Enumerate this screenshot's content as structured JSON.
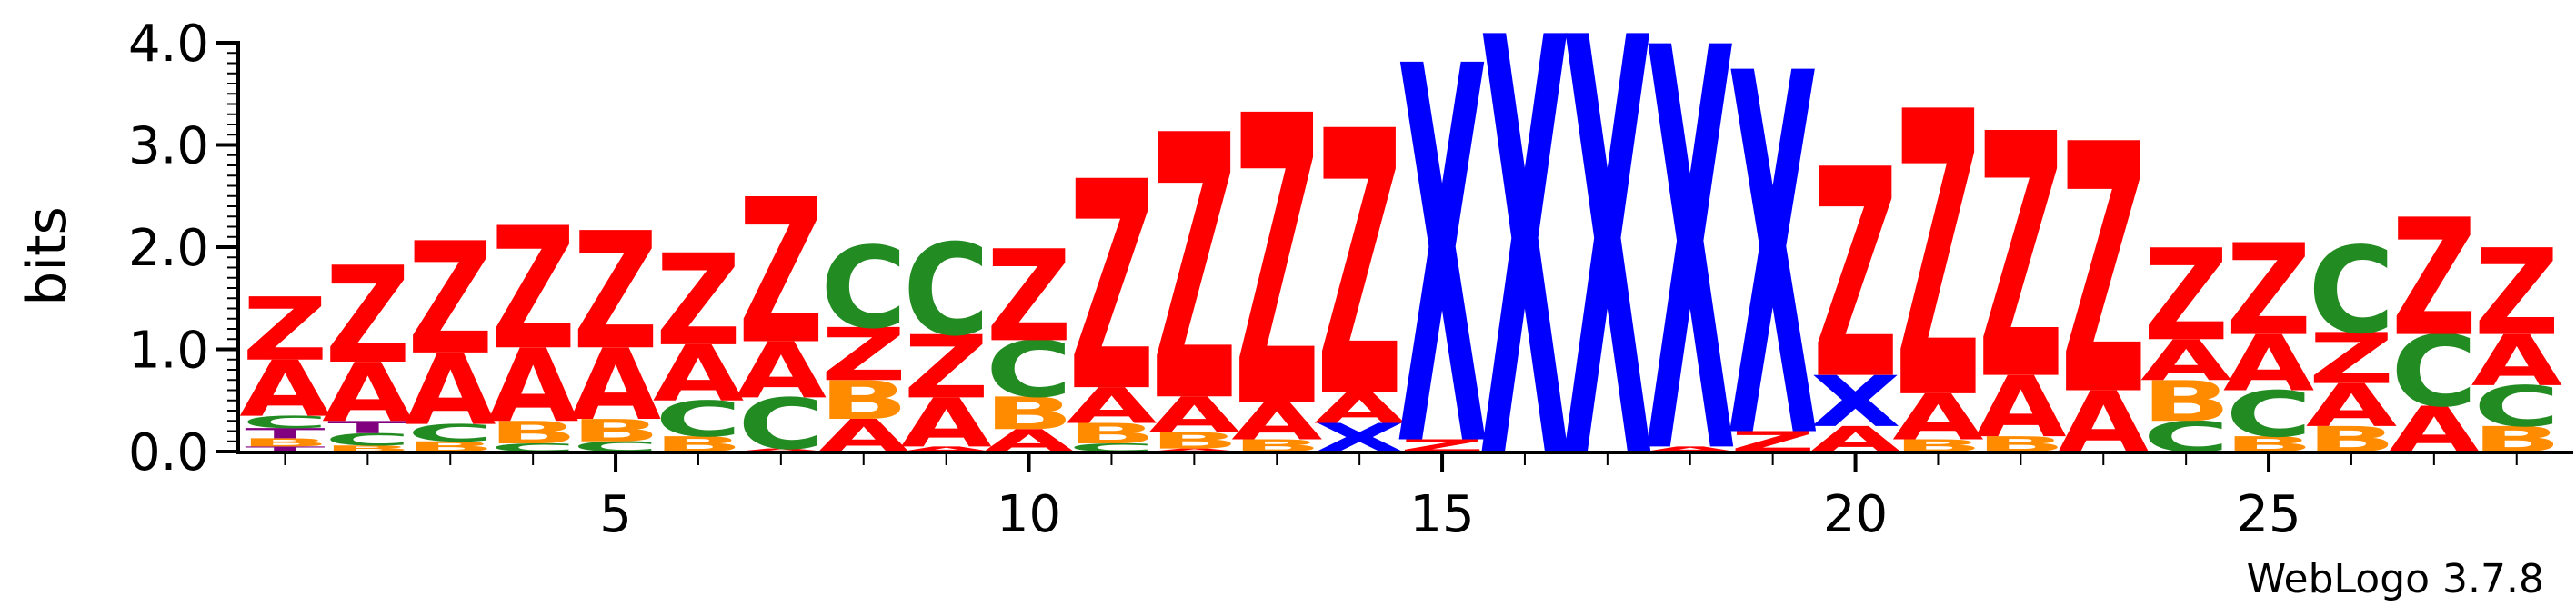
{
  "chart_data": {
    "type": "sequence-logo",
    "ylabel": "bits",
    "ylim": [
      0,
      4.0
    ],
    "yticks": [
      "0.0",
      "1.0",
      "2.0",
      "3.0",
      "4.0"
    ],
    "xticks": [
      5,
      10,
      15,
      20,
      25
    ],
    "xlim": [
      0.5,
      28.5
    ],
    "footer": "WebLogo 3.7.8",
    "colors": {
      "Z": "#ff0000",
      "A": "#ff0000",
      "X": "#0000ff",
      "C": "#228b22",
      "B": "#ff8c00",
      "T": "#800080"
    },
    "positions": [
      {
        "pos": 1,
        "stack": [
          [
            "T",
            0.05
          ],
          [
            "B",
            0.08
          ],
          [
            "T",
            0.1
          ],
          [
            "C",
            0.12
          ],
          [
            "A",
            0.55
          ],
          [
            "Z",
            0.62
          ]
        ]
      },
      {
        "pos": 2,
        "stack": [
          [
            "B",
            0.06
          ],
          [
            "C",
            0.12
          ],
          [
            "T",
            0.12
          ],
          [
            "A",
            0.58
          ],
          [
            "Z",
            0.95
          ]
        ]
      },
      {
        "pos": 3,
        "stack": [
          [
            "B",
            0.1
          ],
          [
            "C",
            0.17
          ],
          [
            "A",
            0.7
          ],
          [
            "Z",
            1.1
          ]
        ]
      },
      {
        "pos": 4,
        "stack": [
          [
            "C",
            0.08
          ],
          [
            "B",
            0.22
          ],
          [
            "A",
            0.72
          ],
          [
            "Z",
            1.2
          ]
        ]
      },
      {
        "pos": 5,
        "stack": [
          [
            "C",
            0.1
          ],
          [
            "B",
            0.22
          ],
          [
            "A",
            0.7
          ],
          [
            "Z",
            1.15
          ]
        ]
      },
      {
        "pos": 6,
        "stack": [
          [
            "B",
            0.15
          ],
          [
            "C",
            0.35
          ],
          [
            "A",
            0.55
          ],
          [
            "Z",
            0.9
          ]
        ]
      },
      {
        "pos": 7,
        "stack": [
          [
            "A",
            0.03
          ],
          [
            "C",
            0.5
          ],
          [
            "A",
            0.55
          ],
          [
            "Z",
            1.42
          ]
        ]
      },
      {
        "pos": 8,
        "stack": [
          [
            "A",
            0.32
          ],
          [
            "B",
            0.38
          ],
          [
            "Z",
            0.52
          ],
          [
            "C",
            0.8
          ]
        ]
      },
      {
        "pos": 9,
        "stack": [
          [
            "A",
            0.05
          ],
          [
            "A",
            0.48
          ],
          [
            "Z",
            0.62
          ],
          [
            "C",
            0.9
          ]
        ]
      },
      {
        "pos": 10,
        "stack": [
          [
            "A",
            0.22
          ],
          [
            "B",
            0.32
          ],
          [
            "C",
            0.55
          ],
          [
            "Z",
            0.9
          ]
        ]
      },
      {
        "pos": 11,
        "stack": [
          [
            "C",
            0.08
          ],
          [
            "B",
            0.2
          ],
          [
            "A",
            0.35
          ],
          [
            "Z",
            2.05
          ]
        ]
      },
      {
        "pos": 12,
        "stack": [
          [
            "A",
            0.03
          ],
          [
            "B",
            0.16
          ],
          [
            "A",
            0.35
          ],
          [
            "Z",
            2.6
          ]
        ]
      },
      {
        "pos": 13,
        "stack": [
          [
            "B",
            0.12
          ],
          [
            "A",
            0.36
          ],
          [
            "Z",
            2.85
          ]
        ]
      },
      {
        "pos": 14,
        "stack": [
          [
            "X",
            0.28
          ],
          [
            "A",
            0.3
          ],
          [
            "Z",
            2.6
          ]
        ]
      },
      {
        "pos": 15,
        "stack": [
          [
            "Z",
            0.12
          ],
          [
            "X",
            3.7
          ]
        ]
      },
      {
        "pos": 16,
        "stack": [
          [
            "X",
            4.1
          ]
        ]
      },
      {
        "pos": 17,
        "stack": [
          [
            "X",
            4.1
          ]
        ]
      },
      {
        "pos": 18,
        "stack": [
          [
            "A",
            0.05
          ],
          [
            "X",
            3.95
          ]
        ]
      },
      {
        "pos": 19,
        "stack": [
          [
            "Z",
            0.2
          ],
          [
            "X",
            3.55
          ]
        ]
      },
      {
        "pos": 20,
        "stack": [
          [
            "A",
            0.25
          ],
          [
            "X",
            0.5
          ],
          [
            "Z",
            2.05
          ]
        ]
      },
      {
        "pos": 21,
        "stack": [
          [
            "B",
            0.12
          ],
          [
            "A",
            0.45
          ],
          [
            "Z",
            2.8
          ]
        ]
      },
      {
        "pos": 22,
        "stack": [
          [
            "B",
            0.15
          ],
          [
            "A",
            0.6
          ],
          [
            "Z",
            2.4
          ]
        ]
      },
      {
        "pos": 23,
        "stack": [
          [
            "A",
            0.6
          ],
          [
            "Z",
            2.45
          ]
        ]
      },
      {
        "pos": 24,
        "stack": [
          [
            "C",
            0.3
          ],
          [
            "B",
            0.4
          ],
          [
            "A",
            0.4
          ],
          [
            "Z",
            0.9
          ]
        ]
      },
      {
        "pos": 25,
        "stack": [
          [
            "B",
            0.15
          ],
          [
            "C",
            0.45
          ],
          [
            "A",
            0.55
          ],
          [
            "Z",
            0.9
          ]
        ]
      },
      {
        "pos": 26,
        "stack": [
          [
            "B",
            0.25
          ],
          [
            "A",
            0.42
          ],
          [
            "Z",
            0.5
          ],
          [
            "C",
            0.85
          ]
        ]
      },
      {
        "pos": 27,
        "stack": [
          [
            "A",
            0.45
          ],
          [
            "C",
            0.7
          ],
          [
            "Z",
            1.15
          ]
        ]
      },
      {
        "pos": 28,
        "stack": [
          [
            "B",
            0.25
          ],
          [
            "C",
            0.4
          ],
          [
            "A",
            0.5
          ],
          [
            "Z",
            0.85
          ]
        ]
      }
    ]
  }
}
